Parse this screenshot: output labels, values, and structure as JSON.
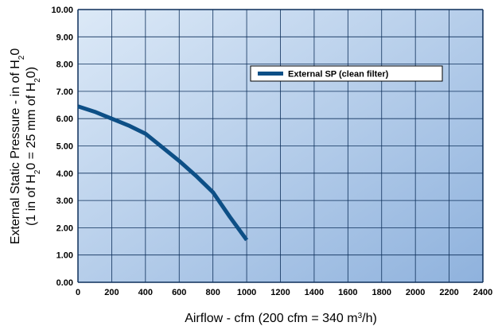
{
  "chart_data": {
    "type": "line",
    "title": "",
    "xlabel_main": "Airflow - cfm (200 cfm = 340 m",
    "xlabel_sup": "3",
    "xlabel_end": "/h)",
    "ylabel_line1": [
      {
        "t": "External Static Pressure - in of H",
        "sub": false
      },
      {
        "t": "2",
        "sub": true
      },
      {
        "t": "0",
        "sub": false
      }
    ],
    "ylabel_line2": [
      {
        "t": "(1 in of H",
        "sub": false
      },
      {
        "t": "2",
        "sub": true
      },
      {
        "t": "0 = 25 mm of H",
        "sub": false
      },
      {
        "t": "2",
        "sub": true
      },
      {
        "t": "0)",
        "sub": false
      }
    ],
    "xlim": [
      0,
      2400
    ],
    "ylim": [
      0,
      10
    ],
    "x_ticks": [
      0,
      200,
      400,
      600,
      800,
      1000,
      1200,
      1400,
      1600,
      1800,
      2000,
      2200,
      2400
    ],
    "y_ticks": [
      0,
      1,
      2,
      3,
      4,
      5,
      6,
      7,
      8,
      9,
      10
    ],
    "x_tick_labels": [
      "0",
      "200",
      "400",
      "600",
      "800",
      "1000",
      "1200",
      "1400",
      "1600",
      "1800",
      "2000",
      "2200",
      "2400"
    ],
    "y_tick_labels": [
      "0.00",
      "1.00",
      "2.00",
      "3.00",
      "4.00",
      "5.00",
      "6.00",
      "7.00",
      "8.00",
      "9.00",
      "10.00"
    ],
    "grid": true,
    "legend_position": "top-right",
    "series": [
      {
        "name": "External SP (clean filter)",
        "color": "#0d4f86",
        "x": [
          0,
          100,
          200,
          300,
          400,
          500,
          600,
          700,
          800,
          900,
          1000
        ],
        "y": [
          6.45,
          6.25,
          6.0,
          5.75,
          5.45,
          4.95,
          4.45,
          3.9,
          3.3,
          2.4,
          1.55
        ]
      }
    ],
    "colors": {
      "background_gradient": [
        "#dce9f7",
        "#8fb2dd"
      ],
      "grid": "#0d2f5a",
      "line": "#0d4f86"
    }
  }
}
